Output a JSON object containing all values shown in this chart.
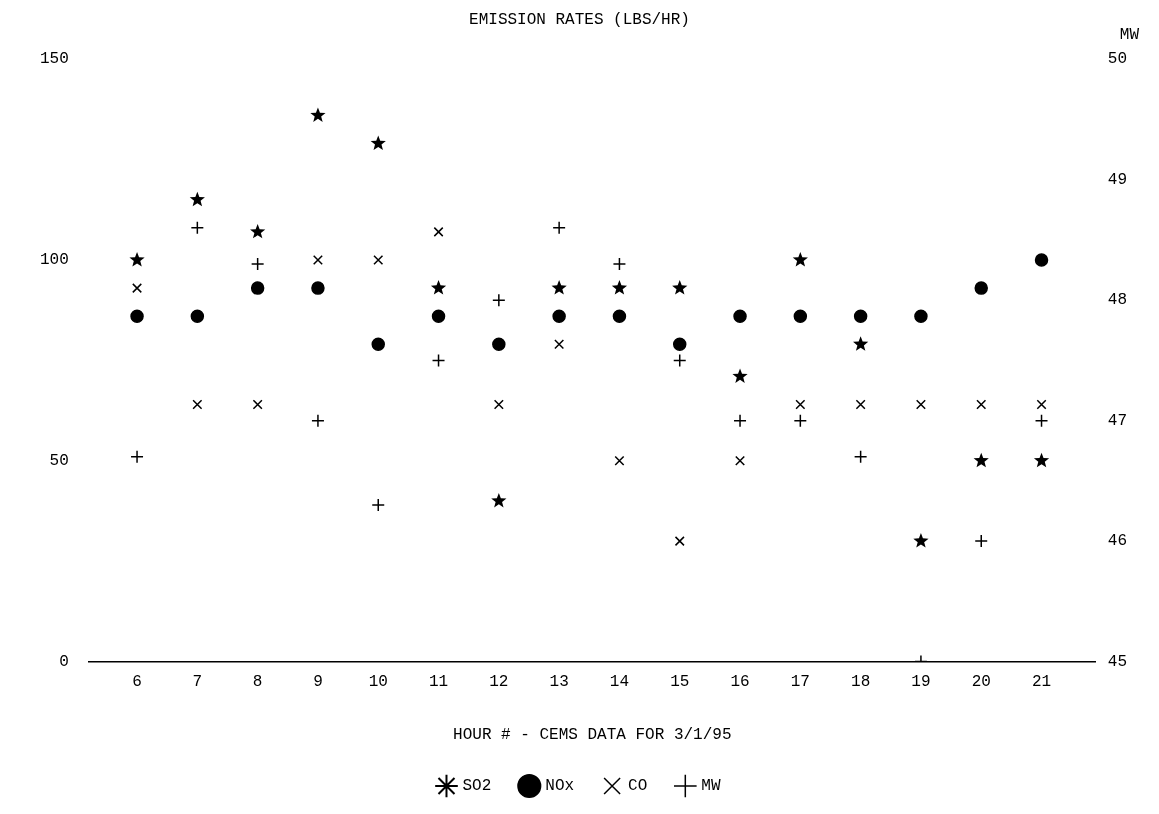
{
  "chart_data": {
    "type": "scatter",
    "title": "EMISSION RATES (LBS/HR)",
    "xlabel": "HOUR # - CEMS DATA FOR 3/1/95",
    "y2label": "MW",
    "x": [
      6,
      7,
      8,
      9,
      10,
      11,
      12,
      13,
      14,
      15,
      16,
      17,
      18,
      19,
      20,
      21
    ],
    "xlim": [
      5.2,
      21.9
    ],
    "xticks": [
      6,
      7,
      8,
      9,
      10,
      11,
      12,
      13,
      14,
      15,
      16,
      17,
      18,
      19,
      20,
      21
    ],
    "ylim": [
      0,
      150
    ],
    "yticks": [
      0,
      50,
      100,
      150
    ],
    "y2lim": [
      45,
      50
    ],
    "y2ticks": [
      45,
      46,
      47,
      48,
      49,
      50
    ],
    "grid": false,
    "legend": "bottom",
    "series": [
      {
        "name": "SO2",
        "color": "#000000",
        "marker": "star",
        "values": [
          100,
          115,
          107,
          136,
          129,
          93,
          40,
          93,
          93,
          93,
          71,
          100,
          79,
          30,
          50,
          50
        ]
      },
      {
        "name": "NOx",
        "color": "#000000",
        "marker": "circle",
        "values": [
          86,
          86,
          93,
          93,
          79,
          86,
          79,
          86,
          86,
          79,
          86,
          86,
          86,
          86,
          93,
          100
        ]
      },
      {
        "name": "CO",
        "color": "#000000",
        "marker": "x",
        "values": [
          93,
          64,
          64,
          100,
          100,
          107,
          64,
          79,
          50,
          30,
          50,
          64,
          64,
          64,
          64,
          64
        ]
      },
      {
        "name": "MW",
        "color": "#000000",
        "marker": "cross",
        "axis": "y2",
        "values": [
          46.7,
          48.6,
          48.3,
          47,
          46.3,
          47.5,
          48,
          48.6,
          48.3,
          47.5,
          47,
          47,
          46.7,
          45,
          46,
          47
        ]
      }
    ]
  }
}
